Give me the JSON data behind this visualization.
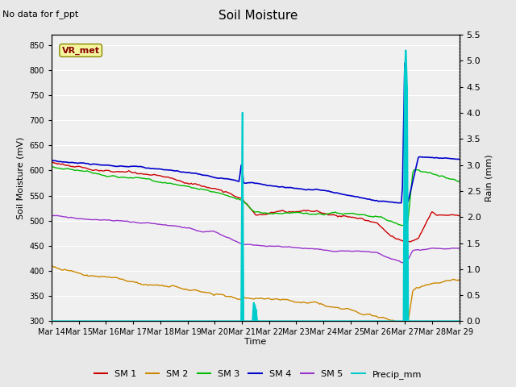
{
  "title": "Soil Moisture",
  "no_data_text": "No data for f_ppt",
  "vr_met_label": "VR_met",
  "ylabel_left": "Soil Moisture (mV)",
  "ylabel_right": "Rain (mm)",
  "xlabel": "Time",
  "ylim_left": [
    300,
    870
  ],
  "ylim_right": [
    0.0,
    5.5
  ],
  "yticks_left": [
    300,
    350,
    400,
    450,
    500,
    550,
    600,
    650,
    700,
    750,
    800,
    850
  ],
  "yticks_right": [
    0.0,
    0.5,
    1.0,
    1.5,
    2.0,
    2.5,
    3.0,
    3.5,
    4.0,
    4.5,
    5.0,
    5.5
  ],
  "x_tick_labels": [
    "Mar 14",
    "Mar 15",
    "Mar 16",
    "Mar 17",
    "Mar 18",
    "Mar 19",
    "Mar 20",
    "Mar 21",
    "Mar 22",
    "Mar 23",
    "Mar 24",
    "Mar 25",
    "Mar 26",
    "Mar 27",
    "Mar 28",
    "Mar 29"
  ],
  "colors": {
    "SM1": "#cc0000",
    "SM2": "#cc8800",
    "SM3": "#00bb00",
    "SM4": "#0000cc",
    "SM5": "#9933cc",
    "Precip": "#00cccc"
  },
  "bg_color": "#e8e8e8",
  "plot_bg_color": "#f0f0f0"
}
